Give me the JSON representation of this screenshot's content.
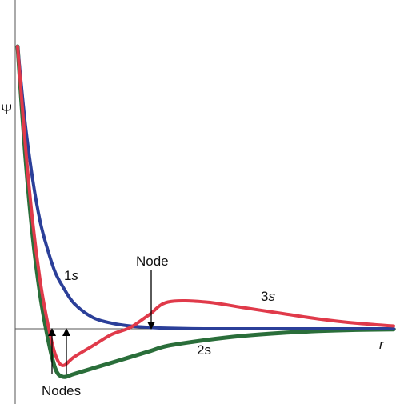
{
  "chart_data": {
    "type": "line",
    "xlabel": "r",
    "ylabel": "Ψ",
    "grid": false,
    "legend": "none",
    "x": [
      0.0,
      0.2,
      0.4,
      0.6,
      0.8,
      1.0,
      1.2,
      1.5,
      2.0,
      2.5,
      3.0,
      3.5,
      4.0,
      5.0,
      6.0,
      7.0,
      8.0,
      9.0,
      10.0
    ],
    "series": [
      {
        "name": "1s",
        "color": "#2b3f99",
        "values": [
          1.0,
          0.73,
          0.53,
          0.38,
          0.28,
          0.2,
          0.15,
          0.09,
          0.04,
          0.02,
          0.01,
          0.005,
          0.002,
          0.0,
          0.0,
          0.0,
          0.0,
          0.0,
          0.0
        ]
      },
      {
        "name": "2s",
        "color": "#2a6e3a",
        "values": [
          1.0,
          0.62,
          0.33,
          0.12,
          -0.03,
          -0.14,
          -0.17,
          -0.16,
          -0.14,
          -0.12,
          -0.1,
          -0.08,
          -0.06,
          -0.04,
          -0.025,
          -0.015,
          -0.008,
          -0.004,
          -0.002
        ]
      },
      {
        "name": "3s",
        "color": "#e03a4a",
        "values": [
          1.0,
          0.66,
          0.38,
          0.17,
          0.02,
          -0.09,
          -0.13,
          -0.1,
          -0.06,
          -0.02,
          0.005,
          0.05,
          0.095,
          0.095,
          0.075,
          0.055,
          0.035,
          0.02,
          0.01
        ]
      }
    ],
    "annotations": [
      {
        "text": "Node",
        "target_x": 3.5
      },
      {
        "text": "Nodes",
        "target_x": [
          1.0,
          1.35
        ]
      }
    ]
  },
  "labels": {
    "psi": "Ψ",
    "r": "r",
    "node": "Node",
    "nodes": "Nodes",
    "s1_num": "1",
    "s1_orb": "s",
    "s2": "2s",
    "s3_num": "3",
    "s3_orb": "s"
  }
}
